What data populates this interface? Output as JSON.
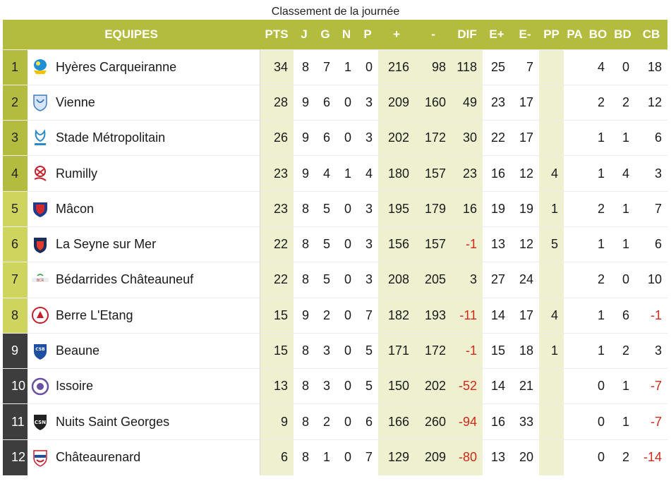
{
  "caption": "Classement de la journée",
  "headers": {
    "team": "EQUIPES",
    "pts": "PTS",
    "j": "J",
    "g": "G",
    "n": "N",
    "p": "P",
    "plus": "+",
    "minus": "-",
    "dif": "DIF",
    "ep": "E+",
    "em": "E-",
    "pp": "PP",
    "pa": "PA",
    "bo": "BO",
    "bd": "BD",
    "cb": "CB"
  },
  "colors": {
    "header_bg": "#b4bc3f",
    "qualify_rank_bg": "#b4bc3f",
    "playoff_rank_bg": "#cfd45e",
    "relegation_rank_bg": "#3d3d3d",
    "highlight_col_bg": "#eef0cf",
    "negative_text": "#d0281a"
  },
  "rows": [
    {
      "rank": "1",
      "team": "Hyères Carqueiranne",
      "logo": "hyeres-carqueiranne-logo",
      "pts": "34",
      "j": "8",
      "g": "7",
      "n": "1",
      "p": "0",
      "plus": "216",
      "minus": "98",
      "dif": "118",
      "ep": "25",
      "em": "7",
      "pp": "",
      "pa": "",
      "bo": "4",
      "bd": "0",
      "cb": "18",
      "zone": "qualify"
    },
    {
      "rank": "2",
      "team": "Vienne",
      "logo": "vienne-logo",
      "pts": "28",
      "j": "9",
      "g": "6",
      "n": "0",
      "p": "3",
      "plus": "209",
      "minus": "160",
      "dif": "49",
      "ep": "23",
      "em": "17",
      "pp": "",
      "pa": "",
      "bo": "2",
      "bd": "2",
      "cb": "12",
      "zone": "qualify"
    },
    {
      "rank": "3",
      "team": "Stade Métropolitain",
      "logo": "stade-metropolitain-logo",
      "pts": "26",
      "j": "9",
      "g": "6",
      "n": "0",
      "p": "3",
      "plus": "202",
      "minus": "172",
      "dif": "30",
      "ep": "22",
      "em": "17",
      "pp": "",
      "pa": "",
      "bo": "1",
      "bd": "1",
      "cb": "6",
      "zone": "qualify"
    },
    {
      "rank": "4",
      "team": "Rumilly",
      "logo": "rumilly-logo",
      "pts": "23",
      "j": "9",
      "g": "4",
      "n": "1",
      "p": "4",
      "plus": "180",
      "minus": "157",
      "dif": "23",
      "ep": "16",
      "em": "12",
      "pp": "4",
      "pa": "",
      "bo": "1",
      "bd": "4",
      "cb": "3",
      "zone": "qualify"
    },
    {
      "rank": "5",
      "team": "Mâcon",
      "logo": "macon-logo",
      "pts": "23",
      "j": "8",
      "g": "5",
      "n": "0",
      "p": "3",
      "plus": "195",
      "minus": "179",
      "dif": "16",
      "ep": "19",
      "em": "19",
      "pp": "1",
      "pa": "",
      "bo": "2",
      "bd": "1",
      "cb": "7",
      "zone": "playoff"
    },
    {
      "rank": "6",
      "team": "La Seyne sur Mer",
      "logo": "la-seyne-logo",
      "pts": "22",
      "j": "8",
      "g": "5",
      "n": "0",
      "p": "3",
      "plus": "156",
      "minus": "157",
      "dif": "-1",
      "ep": "13",
      "em": "12",
      "pp": "5",
      "pa": "",
      "bo": "1",
      "bd": "1",
      "cb": "6",
      "zone": "playoff"
    },
    {
      "rank": "7",
      "team": "Bédarrides Châteauneuf",
      "logo": "bedarrides-logo",
      "pts": "22",
      "j": "8",
      "g": "5",
      "n": "0",
      "p": "3",
      "plus": "208",
      "minus": "205",
      "dif": "3",
      "ep": "27",
      "em": "24",
      "pp": "",
      "pa": "",
      "bo": "2",
      "bd": "0",
      "cb": "10",
      "zone": "playoff"
    },
    {
      "rank": "8",
      "team": "Berre L'Etang",
      "logo": "berre-letang-logo",
      "pts": "15",
      "j": "9",
      "g": "2",
      "n": "0",
      "p": "7",
      "plus": "182",
      "minus": "193",
      "dif": "-11",
      "ep": "14",
      "em": "17",
      "pp": "4",
      "pa": "",
      "bo": "1",
      "bd": "6",
      "cb": "-1",
      "zone": "playoff"
    },
    {
      "rank": "9",
      "team": "Beaune",
      "logo": "beaune-logo",
      "pts": "15",
      "j": "8",
      "g": "3",
      "n": "0",
      "p": "5",
      "plus": "171",
      "minus": "172",
      "dif": "-1",
      "ep": "15",
      "em": "18",
      "pp": "1",
      "pa": "",
      "bo": "1",
      "bd": "2",
      "cb": "3",
      "zone": "relegation"
    },
    {
      "rank": "10",
      "team": "Issoire",
      "logo": "issoire-logo",
      "pts": "13",
      "j": "8",
      "g": "3",
      "n": "0",
      "p": "5",
      "plus": "150",
      "minus": "202",
      "dif": "-52",
      "ep": "14",
      "em": "21",
      "pp": "",
      "pa": "",
      "bo": "0",
      "bd": "1",
      "cb": "-7",
      "zone": "relegation"
    },
    {
      "rank": "11",
      "team": "Nuits Saint Georges",
      "logo": "nuits-saint-georges-logo",
      "pts": "9",
      "j": "8",
      "g": "2",
      "n": "0",
      "p": "6",
      "plus": "166",
      "minus": "260",
      "dif": "-94",
      "ep": "16",
      "em": "33",
      "pp": "",
      "pa": "",
      "bo": "0",
      "bd": "1",
      "cb": "-7",
      "zone": "relegation"
    },
    {
      "rank": "12",
      "team": "Châteaurenard",
      "logo": "chateaurenard-logo",
      "pts": "6",
      "j": "8",
      "g": "1",
      "n": "0",
      "p": "7",
      "plus": "129",
      "minus": "209",
      "dif": "-80",
      "ep": "13",
      "em": "20",
      "pp": "",
      "pa": "",
      "bo": "0",
      "bd": "2",
      "cb": "-14",
      "zone": "relegation"
    }
  ]
}
